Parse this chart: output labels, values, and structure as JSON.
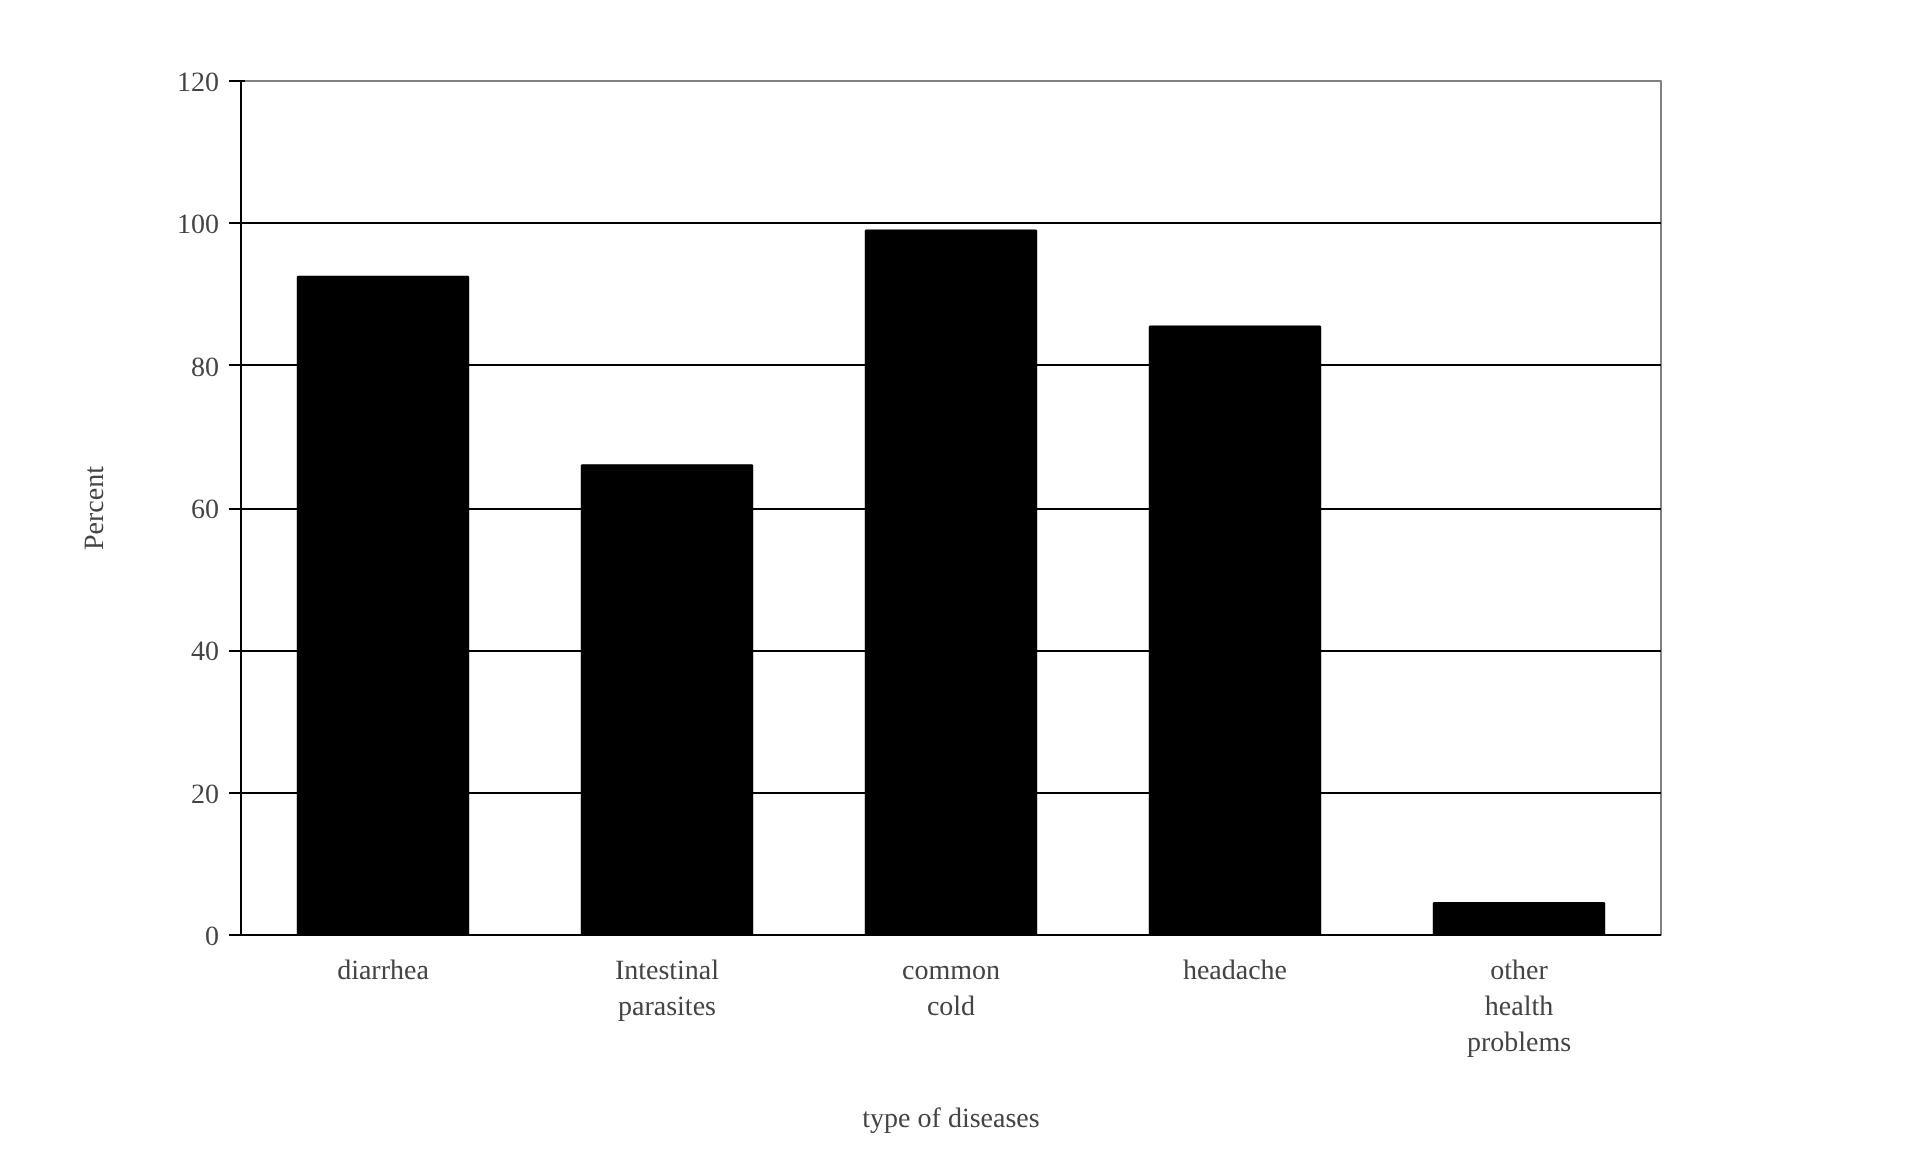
{
  "chart_data": {
    "type": "bar",
    "xlabel": "type of diseases",
    "ylabel": "Percent",
    "categories": [
      "diarrhea",
      "Intestinal parasites",
      "common cold",
      "headache",
      "other health problems"
    ],
    "values": [
      92.5,
      66,
      99,
      85.5,
      4.5
    ],
    "color": "#000000",
    "ylim": [
      0,
      120
    ],
    "yticks": [
      0,
      20,
      40,
      60,
      80,
      100,
      120
    ],
    "grid": "y"
  }
}
